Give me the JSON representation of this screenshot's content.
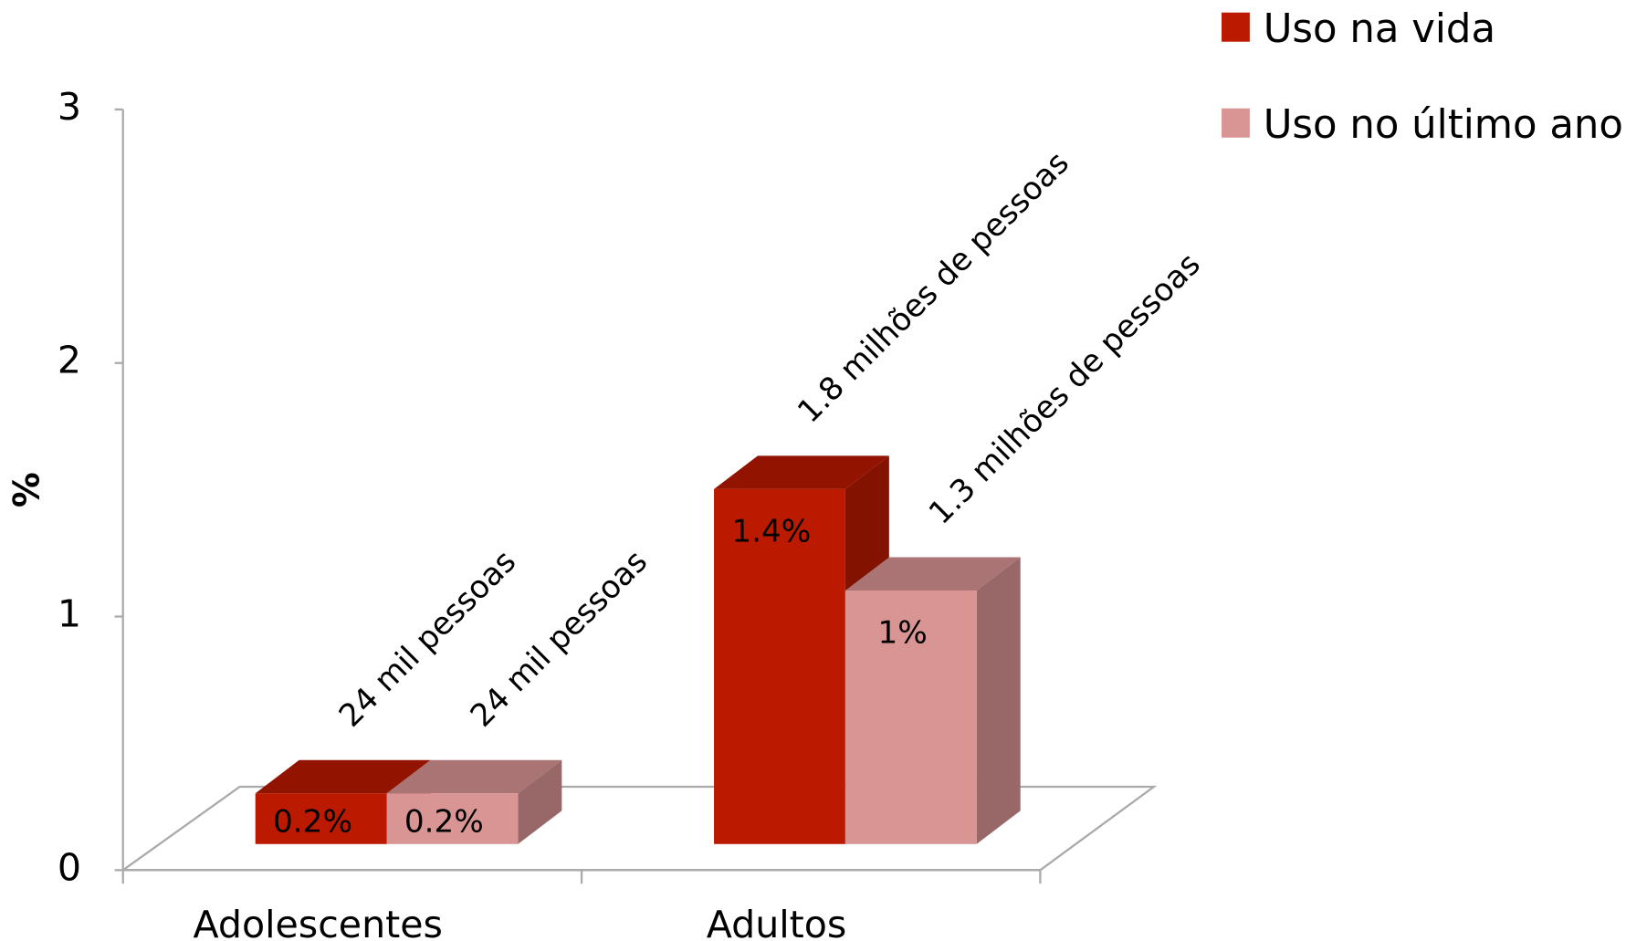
{
  "chart_data": {
    "type": "bar3d",
    "ylabel": "%",
    "categories": [
      "Adolescentes",
      "Adultos"
    ],
    "series": [
      {
        "name": "Uso na vida",
        "color": "#bb1a00",
        "values": [
          0.2,
          1.4
        ],
        "value_labels": [
          "0.2%",
          "1.4%"
        ],
        "annotations": [
          "24 mil pessoas",
          "1.8 milhões de  pessoas"
        ]
      },
      {
        "name": "Uso no último ano",
        "color": "#d99594",
        "values": [
          0.2,
          1.0
        ],
        "value_labels": [
          "0.2%",
          "1%"
        ],
        "annotations": [
          "24 mil pessoas",
          "1.3 milhões de  pessoas"
        ]
      }
    ],
    "ylim": [
      0,
      3
    ],
    "yticks": [
      0,
      1,
      2,
      3
    ],
    "legend": "top-right"
  }
}
